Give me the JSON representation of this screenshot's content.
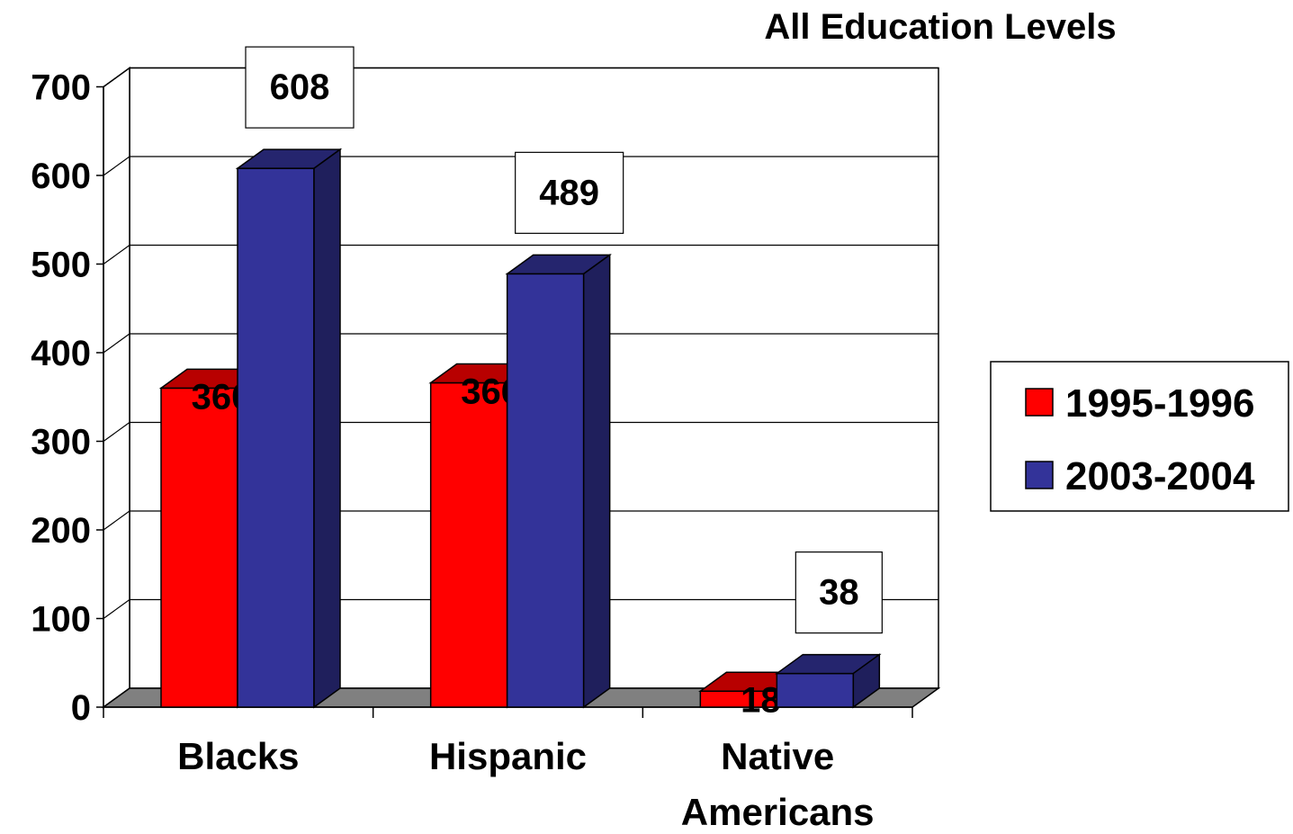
{
  "chart_data": {
    "type": "bar",
    "title": "All Education Levels",
    "categories": [
      "Blacks",
      "Hispanic",
      "Native Americans"
    ],
    "category_lines": [
      [
        "Blacks"
      ],
      [
        "Hispanic"
      ],
      [
        "Native",
        "Americans"
      ]
    ],
    "series": [
      {
        "name": "1995-1996",
        "values": [
          360,
          366,
          18
        ],
        "color": "#ff0000",
        "labels": [
          "360",
          "366",
          "18"
        ]
      },
      {
        "name": "2003-2004",
        "values": [
          608,
          489,
          38
        ],
        "color": "#333399",
        "labels": [
          "608",
          "489",
          "38"
        ]
      }
    ],
    "ylim": [
      0,
      700
    ],
    "yticks": [
      "0",
      "100",
      "200",
      "300",
      "400",
      "500",
      "600",
      "700"
    ],
    "grid": true,
    "legend_position": "right",
    "xlabel": "",
    "ylabel": ""
  }
}
